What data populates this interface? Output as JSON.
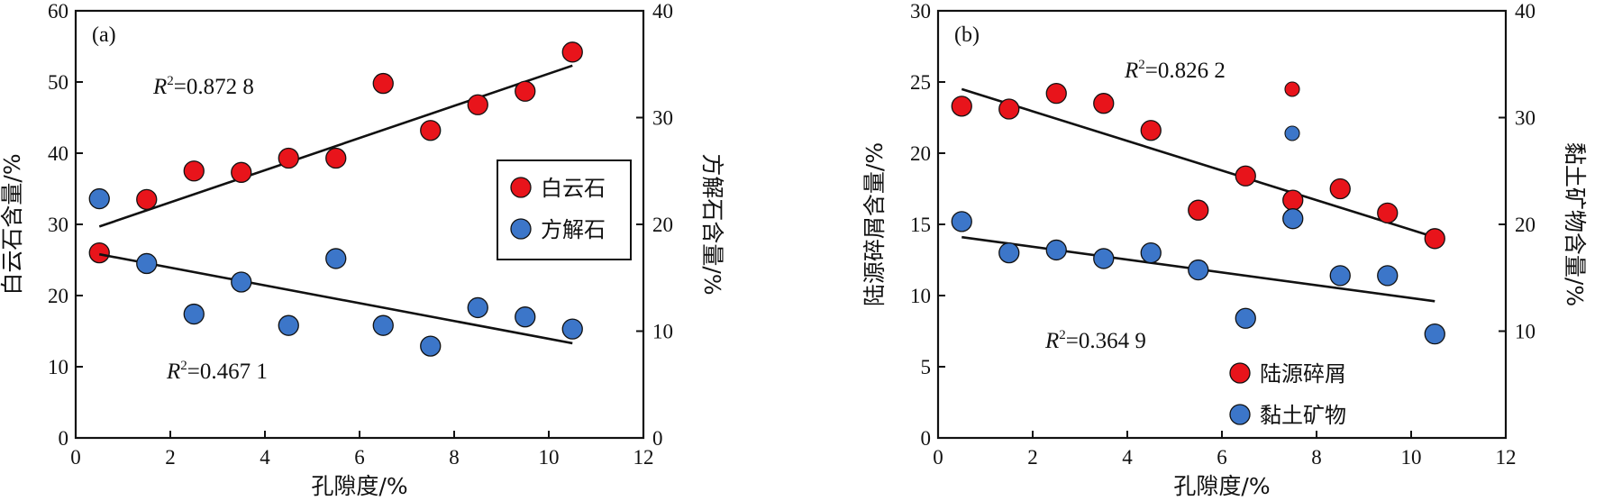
{
  "chart_data": [
    {
      "type": "scatter",
      "panel_label": "(a)",
      "xlabel": "孔隙度/%",
      "ylabel_left": "白云石含量/%",
      "ylabel_right": "方解石含量/%",
      "xlim": [
        0,
        12
      ],
      "xticks": [
        0,
        2,
        4,
        6,
        8,
        10,
        12
      ],
      "ylim_left": [
        0,
        60
      ],
      "yticks_left": [
        0,
        10,
        20,
        30,
        40,
        50,
        60
      ],
      "ylim_right": [
        0,
        40
      ],
      "yticks_right": [
        0,
        10,
        20,
        30,
        40
      ],
      "legend_position": "center-right",
      "series": [
        {
          "name": "白云石",
          "axis": "left",
          "color": "#e8141b",
          "x": [
            0.5,
            1.5,
            2.5,
            3.5,
            4.5,
            5.5,
            6.5,
            7.5,
            8.5,
            9.5,
            10.5
          ],
          "y": [
            26.0,
            33.5,
            37.5,
            37.3,
            39.3,
            39.3,
            49.8,
            43.2,
            46.8,
            48.7,
            54.2
          ],
          "fit": {
            "x": [
              0.5,
              10.5
            ],
            "y": [
              29.7,
              52.3
            ]
          },
          "r2_label": "=0.872 8"
        },
        {
          "name": "方解石",
          "axis": "left",
          "color": "#3c76c9",
          "x": [
            0.5,
            1.5,
            2.5,
            3.5,
            4.5,
            5.5,
            6.5,
            7.5,
            8.5,
            9.5,
            10.5
          ],
          "y": [
            33.6,
            24.5,
            17.4,
            21.9,
            15.8,
            25.2,
            15.8,
            12.9,
            18.3,
            17.0,
            15.3
          ],
          "fit": {
            "x": [
              0.5,
              10.5
            ],
            "y": [
              25.8,
              13.3
            ]
          },
          "r2_label": "=0.467 1"
        }
      ]
    },
    {
      "type": "scatter",
      "panel_label": "(b)",
      "xlabel": "孔隙度/%",
      "ylabel_left": "陆源碎屑含量/%",
      "ylabel_right": "黏土矿物含量/%",
      "xlim": [
        0,
        12
      ],
      "xticks": [
        0,
        2,
        4,
        6,
        8,
        10,
        12
      ],
      "ylim_left": [
        0,
        30
      ],
      "yticks_left": [
        0,
        5,
        10,
        15,
        20,
        25,
        30
      ],
      "ylim_right": [
        0,
        40
      ],
      "yticks_right": [
        10,
        20,
        30,
        40
      ],
      "legend_position": "bottom-right",
      "series": [
        {
          "name": "陆源碎屑",
          "axis": "left",
          "color": "#e8141b",
          "x": [
            0.5,
            1.5,
            2.5,
            3.5,
            4.5,
            5.5,
            6.5,
            7.5,
            8.5,
            9.5,
            10.5
          ],
          "y": [
            23.3,
            23.1,
            24.2,
            23.5,
            21.6,
            16.0,
            18.4,
            16.7,
            17.5,
            15.8,
            14.0
          ],
          "fit": {
            "x": [
              0.5,
              10.5
            ],
            "y": [
              24.5,
              14.1
            ]
          },
          "r2_label": "=0.826 2"
        },
        {
          "name": "黏土矿物",
          "axis": "left",
          "color": "#3c76c9",
          "x": [
            0.5,
            1.5,
            2.5,
            3.5,
            4.5,
            5.5,
            6.5,
            7.5,
            8.5,
            9.5,
            10.5
          ],
          "y": [
            15.2,
            13.0,
            13.2,
            12.6,
            13.0,
            11.8,
            8.4,
            15.4,
            11.4,
            11.4,
            7.3
          ],
          "fit": {
            "x": [
              0.5,
              10.5
            ],
            "y": [
              14.1,
              9.6
            ]
          },
          "r2_label": "=0.364 9"
        }
      ]
    }
  ]
}
